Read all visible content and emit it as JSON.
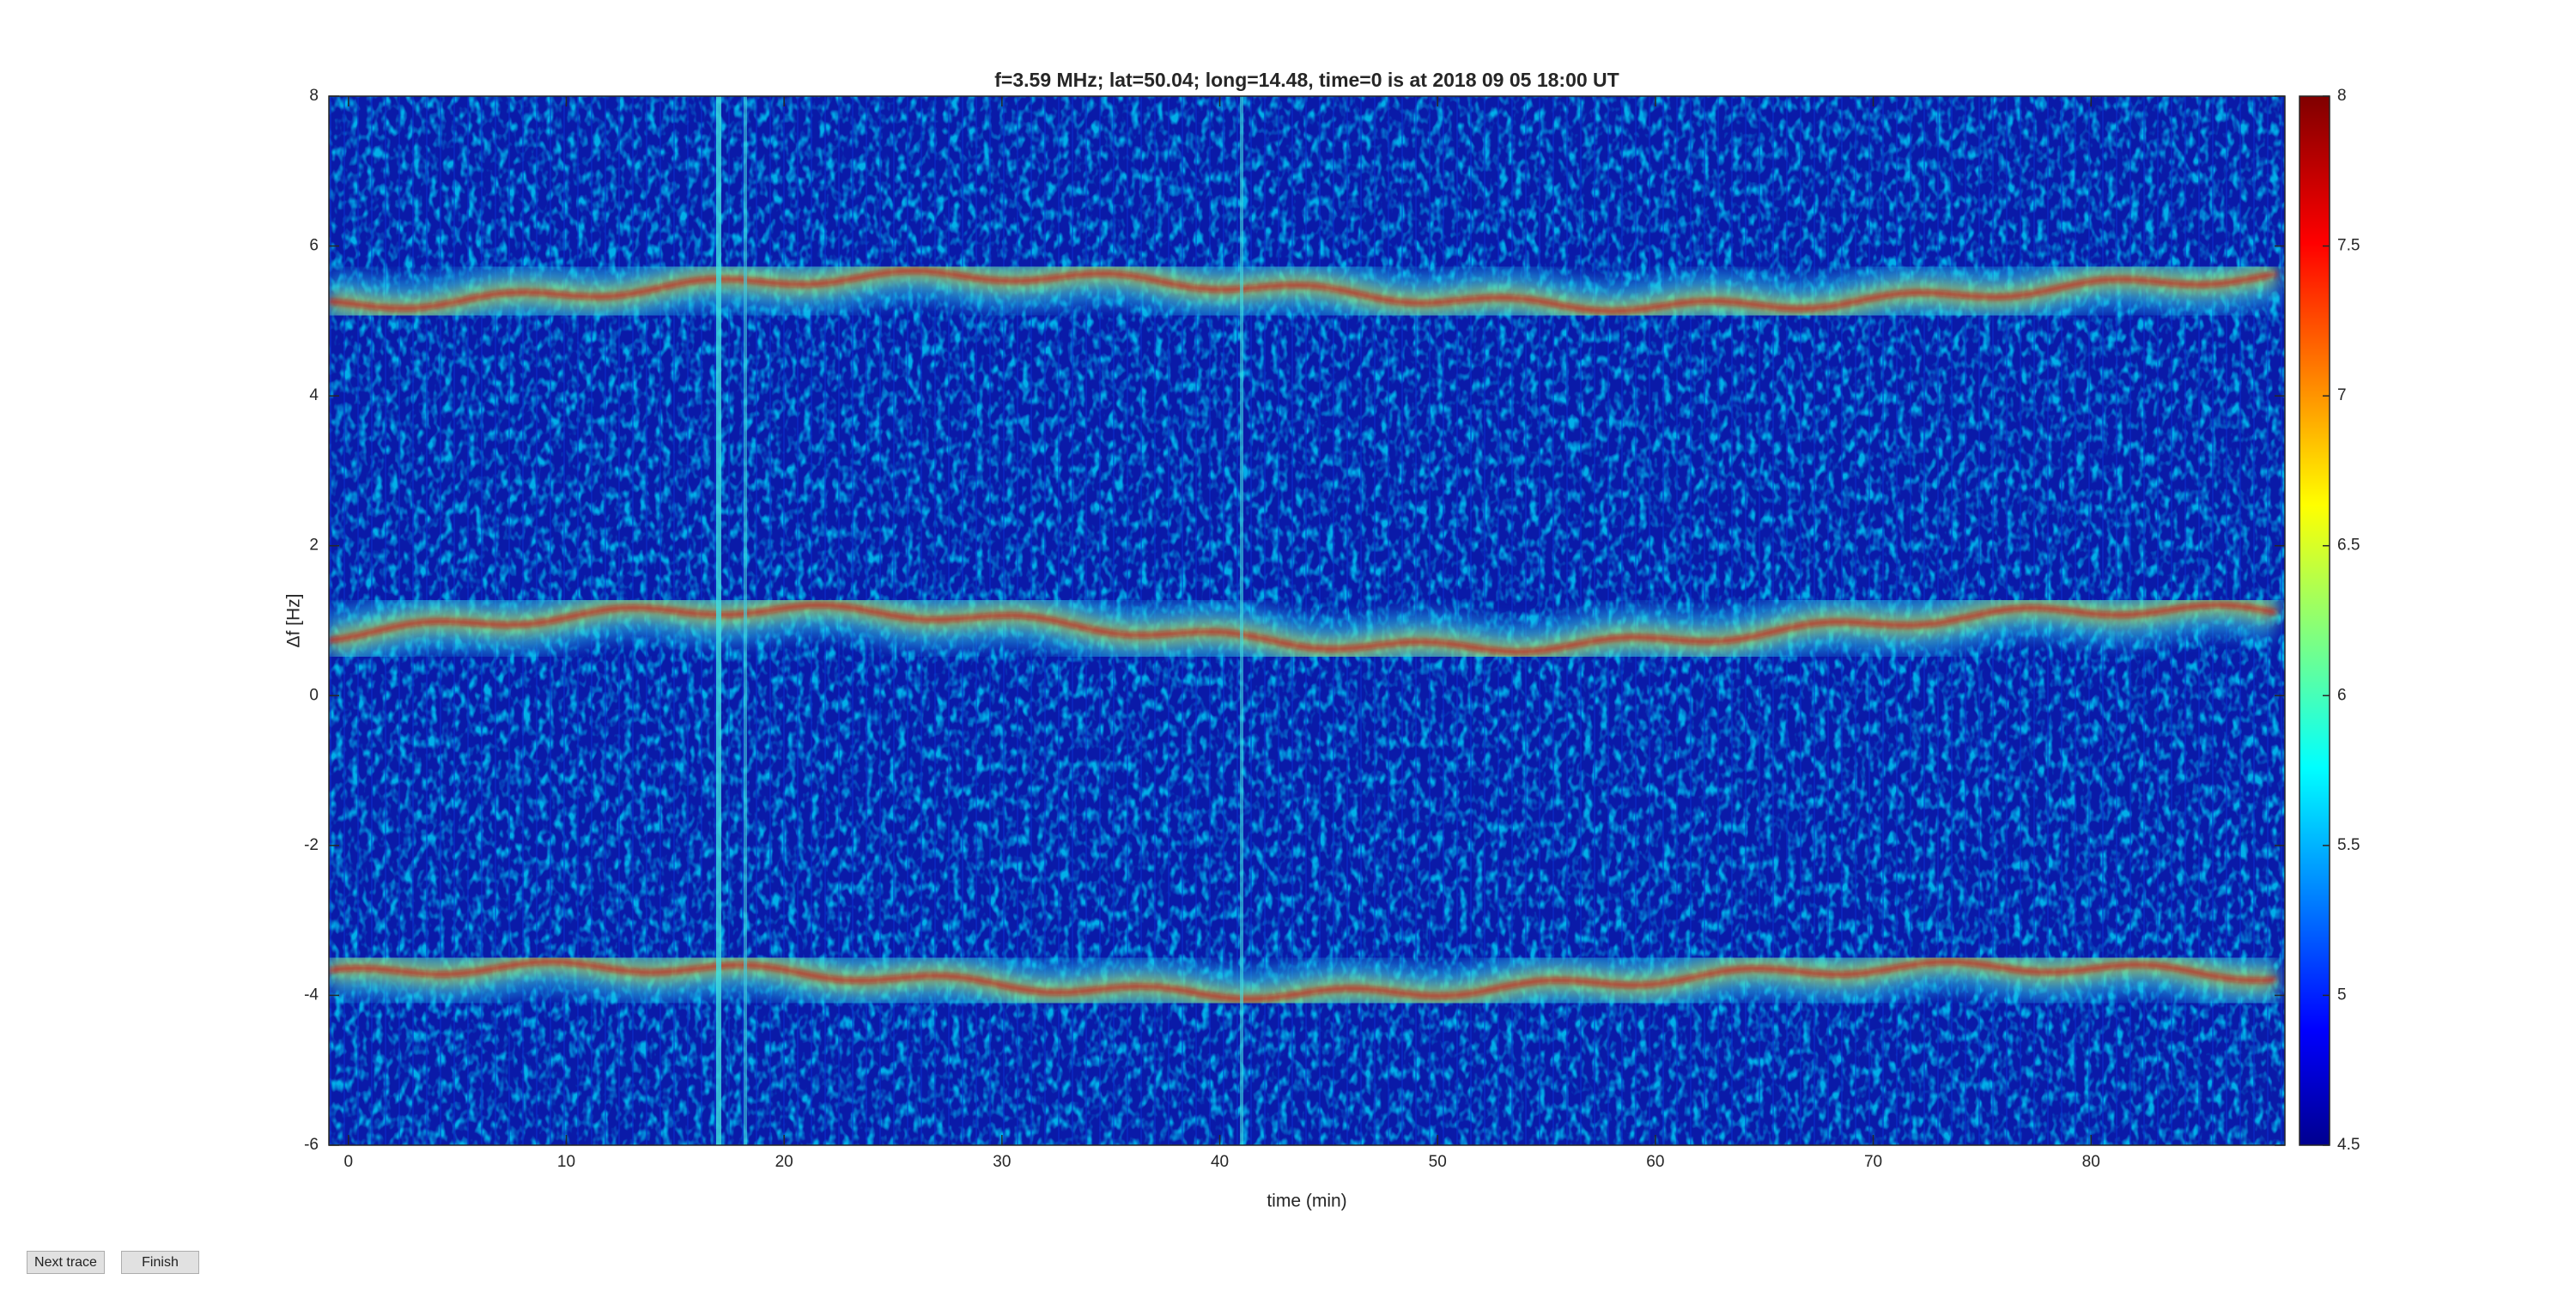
{
  "chart_data": {
    "type": "spectrogram",
    "title": "f=3.59 MHz;  lat=50.04; long=14.48, time=0 is at 2018 09 05 18:00 UT",
    "x_label": "time (min)",
    "y_label": "Δf [Hz]",
    "xlim": [
      -0.9,
      88.9
    ],
    "xticks": [
      0,
      10,
      20,
      30,
      40,
      50,
      60,
      70,
      80
    ],
    "ylim": [
      -6,
      8
    ],
    "yticks": [
      -6,
      -4,
      -2,
      0,
      2,
      4,
      6,
      8
    ],
    "colorbar": {
      "colormap": "jet",
      "lim": [
        4.5,
        8
      ],
      "ticks": [
        4.5,
        5,
        5.5,
        6,
        6.5,
        7,
        7.5,
        8
      ]
    }
  },
  "buttons": [
    {
      "label": "Next trace"
    },
    {
      "label": "Finish"
    }
  ]
}
